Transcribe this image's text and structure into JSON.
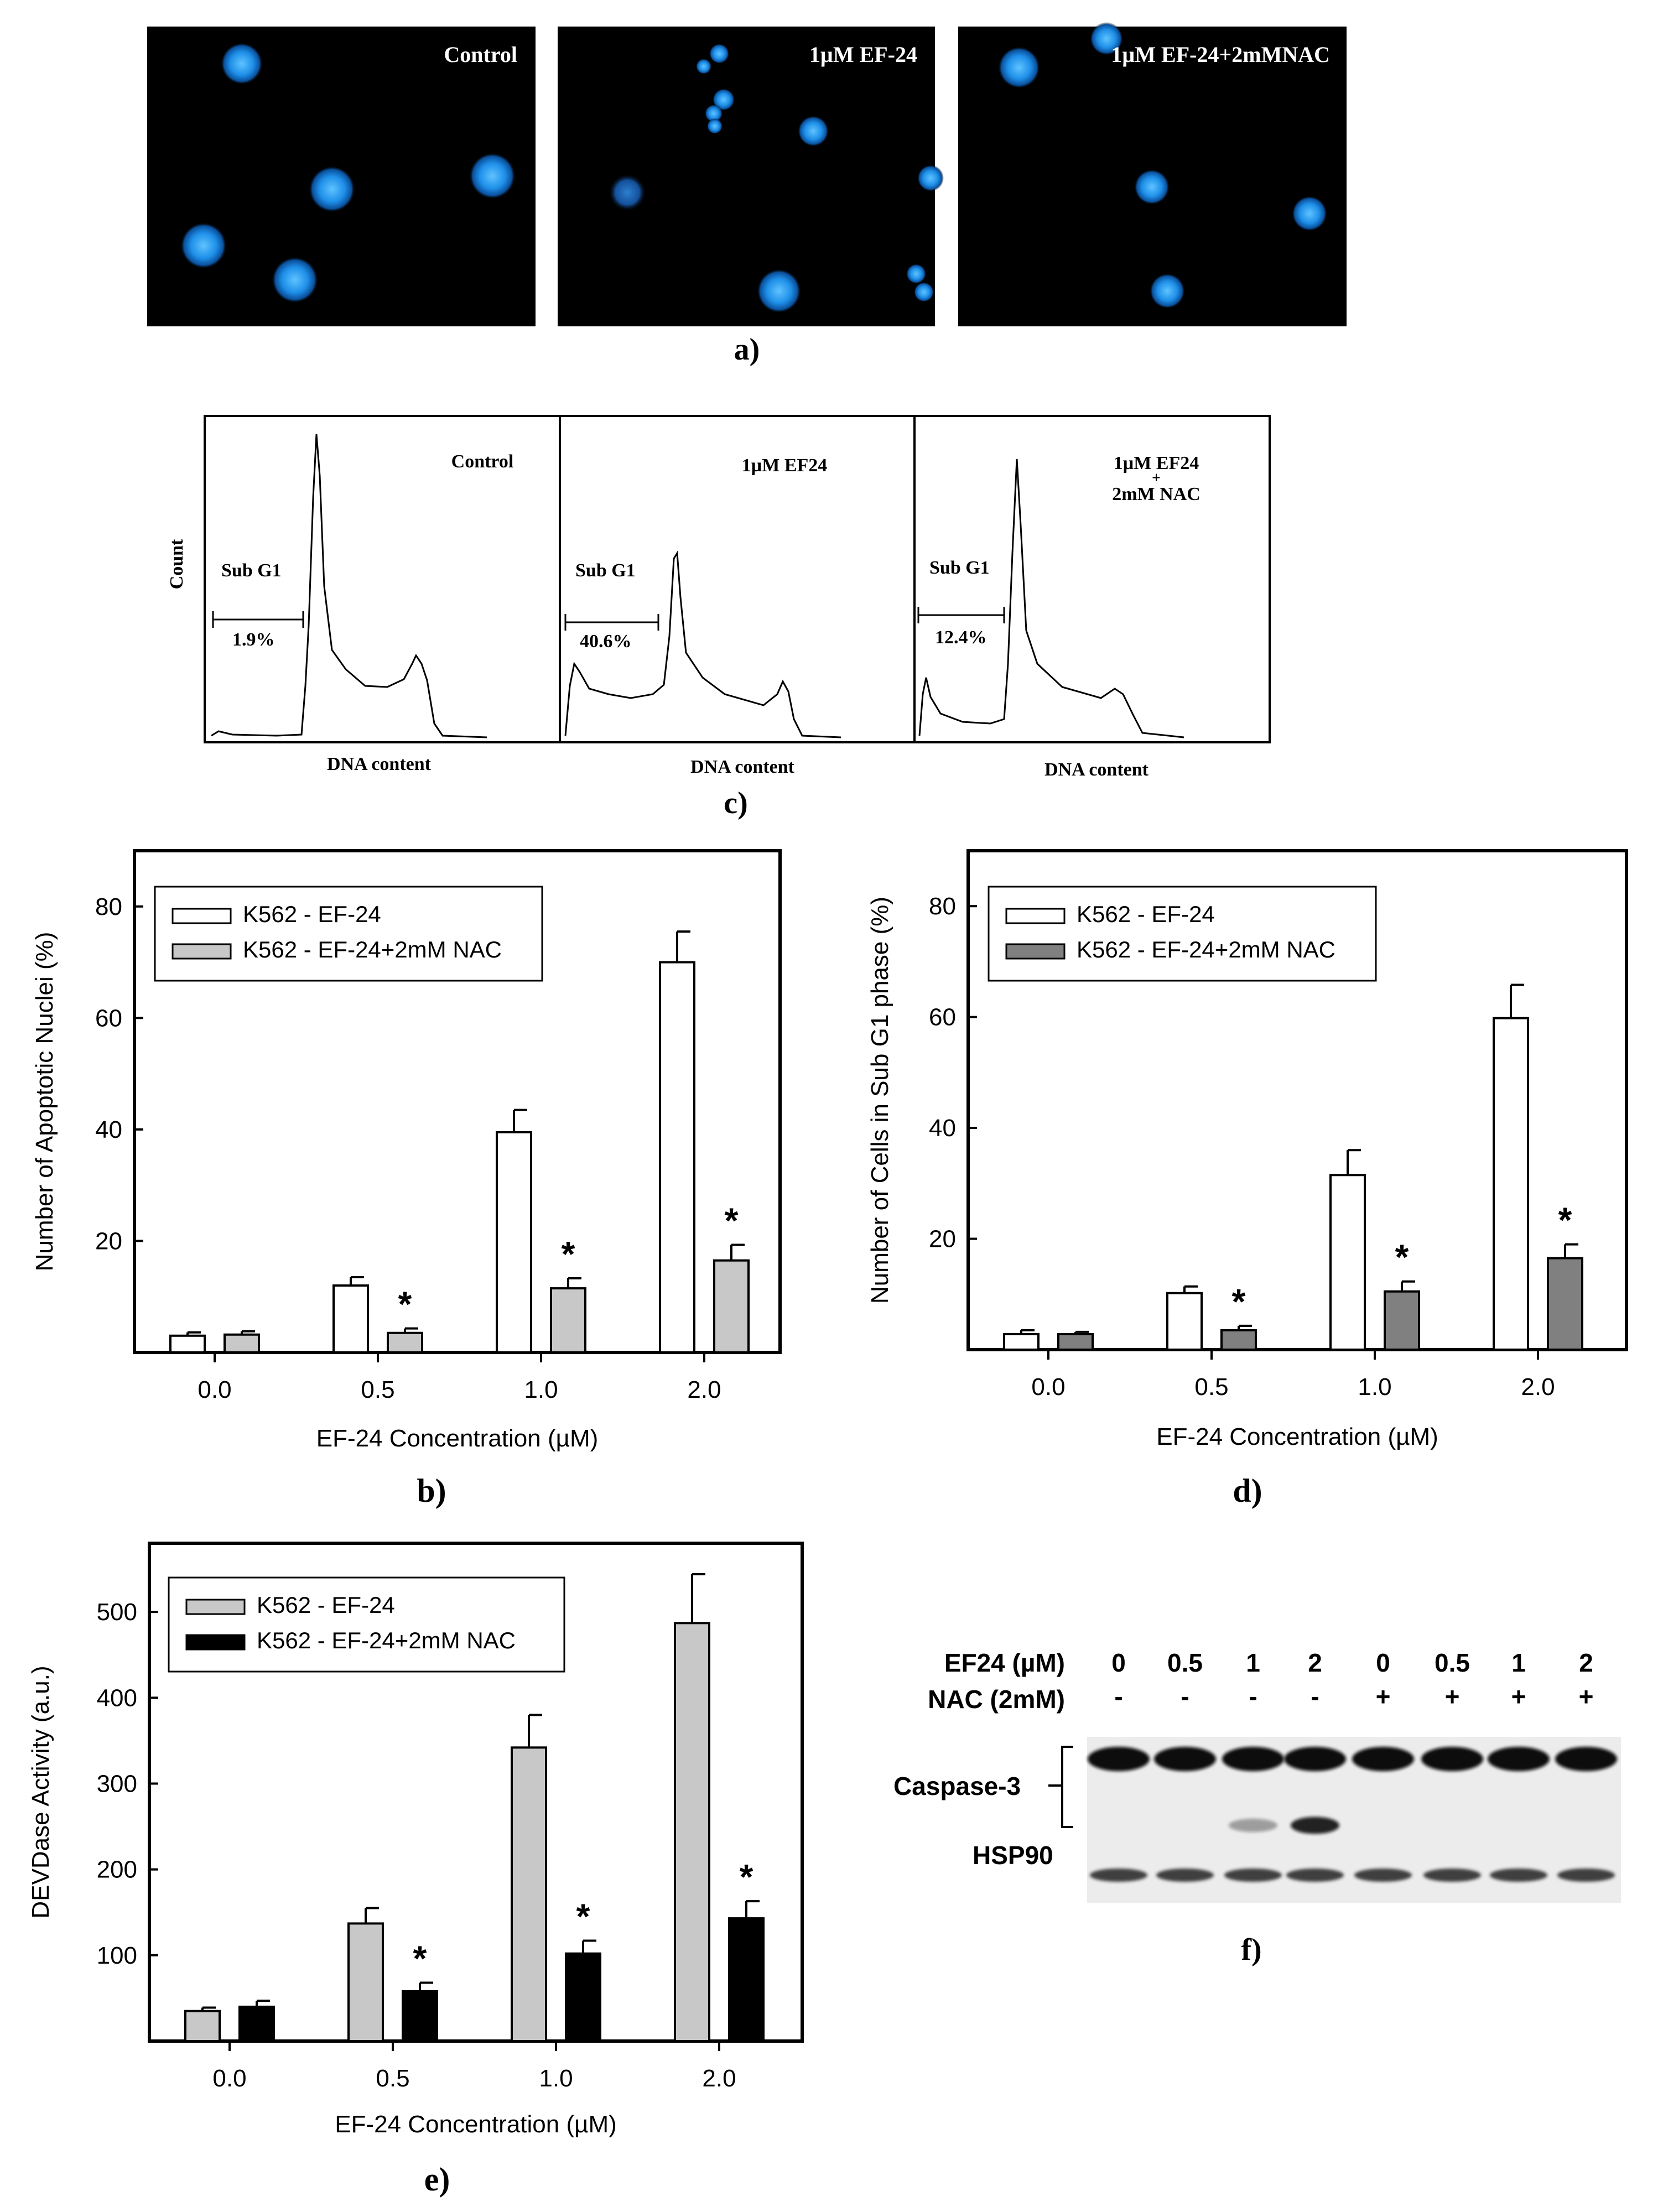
{
  "panel_a": {
    "label": "a)",
    "images": [
      {
        "title": "Control"
      },
      {
        "title": "1µM EF-24"
      },
      {
        "title": "1µM EF-24+2mMNAC"
      }
    ],
    "colors": {
      "background": "#000000",
      "nuclei": "#1e8fe8"
    }
  },
  "panel_c": {
    "label": "c)",
    "ylabel": "Count",
    "xlabel": "DNA content",
    "subpanels": [
      {
        "title": [
          "Control"
        ],
        "gate_label": "Sub G1",
        "gate_value": "1.9%"
      },
      {
        "title": [
          "1µM EF24"
        ],
        "gate_label": "Sub G1",
        "gate_value": "40.6%"
      },
      {
        "title": [
          "1µM EF24",
          "+",
          "2mM NAC"
        ],
        "gate_label": "Sub G1",
        "gate_value": "12.4%"
      }
    ]
  },
  "panel_f": {
    "label": "f)",
    "row1_label": "EF24 (µM)",
    "row1_values": [
      "0",
      "0.5",
      "1",
      "2",
      "0",
      "0.5",
      "1",
      "2"
    ],
    "row2_label": "NAC (2mM)",
    "row2_values": [
      "-",
      "-",
      "-",
      "-",
      "+",
      "+",
      "+",
      "+"
    ],
    "band_labels": {
      "caspase": "Caspase-3",
      "hsp": "HSP90"
    },
    "cleaved_caspase_intensity": [
      0,
      0,
      0.35,
      0.9,
      0,
      0,
      0,
      0
    ]
  },
  "chart_data": [
    {
      "id": "b",
      "panel_label": "b)",
      "type": "bar",
      "xlabel": "EF-24 Concentration (µM)",
      "ylabel": "Number of Apoptotic Nuclei (%)",
      "categories": [
        "0.0",
        "0.5",
        "1.0",
        "2.0"
      ],
      "ylim": [
        0,
        90
      ],
      "yticks": [
        20,
        40,
        60,
        80
      ],
      "legend_position": "top-left",
      "series": [
        {
          "name": "K562 - EF-24",
          "values": [
            3,
            12,
            39.5,
            70
          ],
          "errors": [
            0.6,
            1.5,
            4,
            5.5
          ],
          "fill": "#ffffff"
        },
        {
          "name": "K562 - EF-24+2mM NAC",
          "values": [
            3.2,
            3.5,
            11.5,
            16.5
          ],
          "errors": [
            0.6,
            0.8,
            1.8,
            2.8
          ],
          "fill": "#c8c8c8"
        }
      ],
      "annotations": [
        "",
        "*",
        "*",
        "*"
      ]
    },
    {
      "id": "d",
      "panel_label": "d)",
      "type": "bar",
      "xlabel": "EF-24 Concentration (µM)",
      "ylabel": "Number of Cells in Sub G1 phase (%)",
      "categories": [
        "0.0",
        "0.5",
        "1.0",
        "2.0"
      ],
      "ylim": [
        0,
        90
      ],
      "yticks": [
        20,
        40,
        60,
        80
      ],
      "legend_position": "top-left",
      "series": [
        {
          "name": "K562 - EF-24",
          "values": [
            2.8,
            10.2,
            31.5,
            59.8
          ],
          "errors": [
            0.7,
            1.2,
            4.5,
            6
          ],
          "fill": "#ffffff"
        },
        {
          "name": "K562 - EF-24+2mM NAC",
          "values": [
            2.8,
            3.5,
            10.5,
            16.5
          ],
          "errors": [
            0.4,
            0.8,
            1.8,
            2.5
          ],
          "fill": "#808080"
        }
      ],
      "annotations": [
        "",
        "*",
        "*",
        "*"
      ]
    },
    {
      "id": "e",
      "panel_label": "e)",
      "type": "bar",
      "xlabel": "EF-24 Concentration (µM)",
      "ylabel": "DEVDase Activity (a.u.)",
      "categories": [
        "0.0",
        "0.5",
        "1.0",
        "2.0"
      ],
      "ylim": [
        0,
        580
      ],
      "yticks": [
        100,
        200,
        300,
        400,
        500
      ],
      "legend_position": "top-left",
      "series": [
        {
          "name": "K562 - EF-24",
          "values": [
            35,
            137,
            342,
            487
          ],
          "errors": [
            4,
            18,
            38,
            57
          ],
          "fill": "#c8c8c8"
        },
        {
          "name": "K562 - EF-24+2mM NAC",
          "values": [
            40,
            58,
            102,
            143
          ],
          "errors": [
            7,
            10,
            15,
            20
          ],
          "fill": "#000000"
        }
      ],
      "annotations": [
        "",
        "*",
        "*",
        "*"
      ]
    }
  ]
}
